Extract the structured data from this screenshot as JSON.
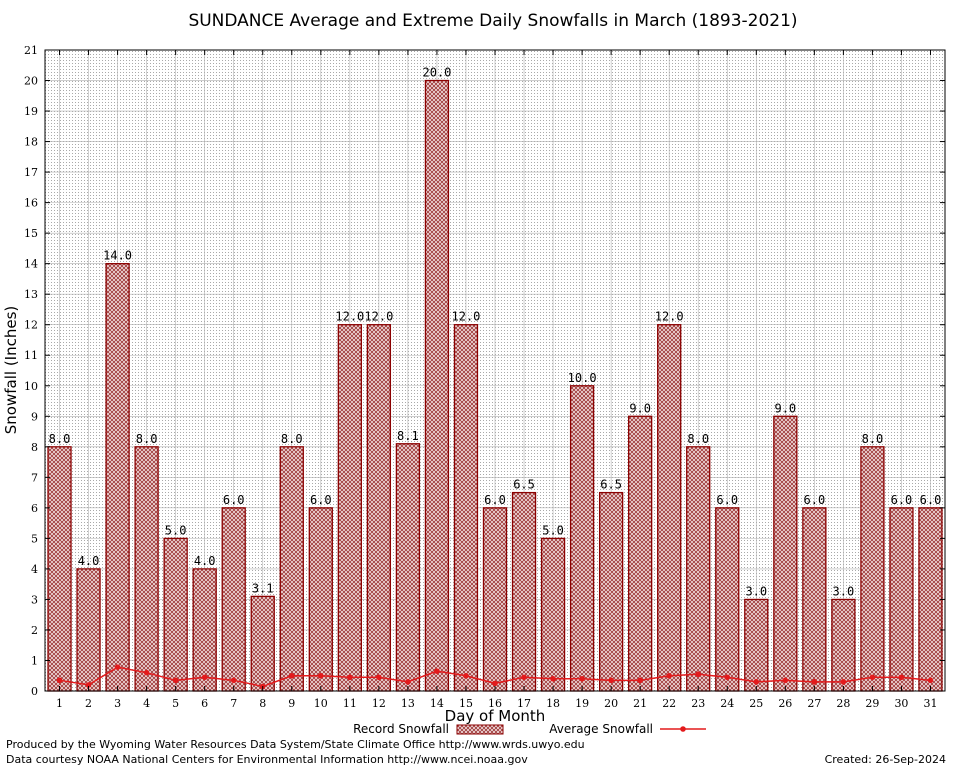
{
  "chart_data": {
    "type": "bar",
    "title": "SUNDANCE Average and Extreme Daily Snowfalls in March (1893-2021)",
    "xlabel": "Day of Month",
    "ylabel": "Snowfall (Inches)",
    "ylim": [
      0,
      21
    ],
    "yticks": [
      "0",
      "1",
      "2",
      "3",
      "4",
      "5",
      "6",
      "7",
      "8",
      "9",
      "10",
      "11",
      "12",
      "13",
      "14",
      "15",
      "16",
      "17",
      "18",
      "19",
      "20",
      "21"
    ],
    "categories": [
      "1",
      "2",
      "3",
      "4",
      "5",
      "6",
      "7",
      "8",
      "9",
      "10",
      "11",
      "12",
      "13",
      "14",
      "15",
      "16",
      "17",
      "18",
      "19",
      "20",
      "21",
      "22",
      "23",
      "24",
      "25",
      "26",
      "27",
      "28",
      "29",
      "30",
      "31"
    ],
    "grid": true,
    "legend_position": "bottom",
    "series": [
      {
        "name": "Record Snowfall",
        "kind": "bar",
        "color": "#8b0000",
        "values": [
          8.0,
          4.0,
          14.0,
          8.0,
          5.0,
          4.0,
          6.0,
          3.1,
          8.0,
          6.0,
          12.0,
          12.0,
          8.1,
          20.0,
          12.0,
          6.0,
          6.5,
          5.0,
          10.0,
          6.5,
          9.0,
          12.0,
          8.0,
          6.0,
          3.0,
          9.0,
          6.0,
          3.0,
          8.0,
          6.0,
          6.0
        ],
        "labels": [
          "8.0",
          "4.0",
          "14.0",
          "8.0",
          "5.0",
          "4.0",
          "6.0",
          "3.1",
          "8.0",
          "6.0",
          "12.0",
          "12.0",
          "8.1",
          "20.0",
          "12.0",
          "6.0",
          "6.5",
          "5.0",
          "10.0",
          "6.5",
          "9.0",
          "12.0",
          "8.0",
          "6.0",
          "3.0",
          "9.0",
          "6.0",
          "3.0",
          "8.0",
          "6.0",
          "6.0"
        ]
      },
      {
        "name": "Average Snowfall",
        "kind": "line",
        "color": "#e31a1c",
        "values": [
          0.35,
          0.2,
          0.78,
          0.6,
          0.35,
          0.45,
          0.35,
          0.15,
          0.5,
          0.5,
          0.45,
          0.45,
          0.3,
          0.65,
          0.5,
          0.25,
          0.45,
          0.4,
          0.4,
          0.35,
          0.35,
          0.5,
          0.55,
          0.45,
          0.3,
          0.35,
          0.3,
          0.3,
          0.45,
          0.45,
          0.35
        ]
      }
    ]
  },
  "footer": {
    "produced_by": "Produced by the Wyoming Water Resources Data System/State Climate Office http://www.wrds.uwyo.edu",
    "data_courtesy": "Data courtesy NOAA National Centers for Environmental Information http://www.ncei.noaa.gov",
    "created": "Created: 26-Sep-2024"
  }
}
